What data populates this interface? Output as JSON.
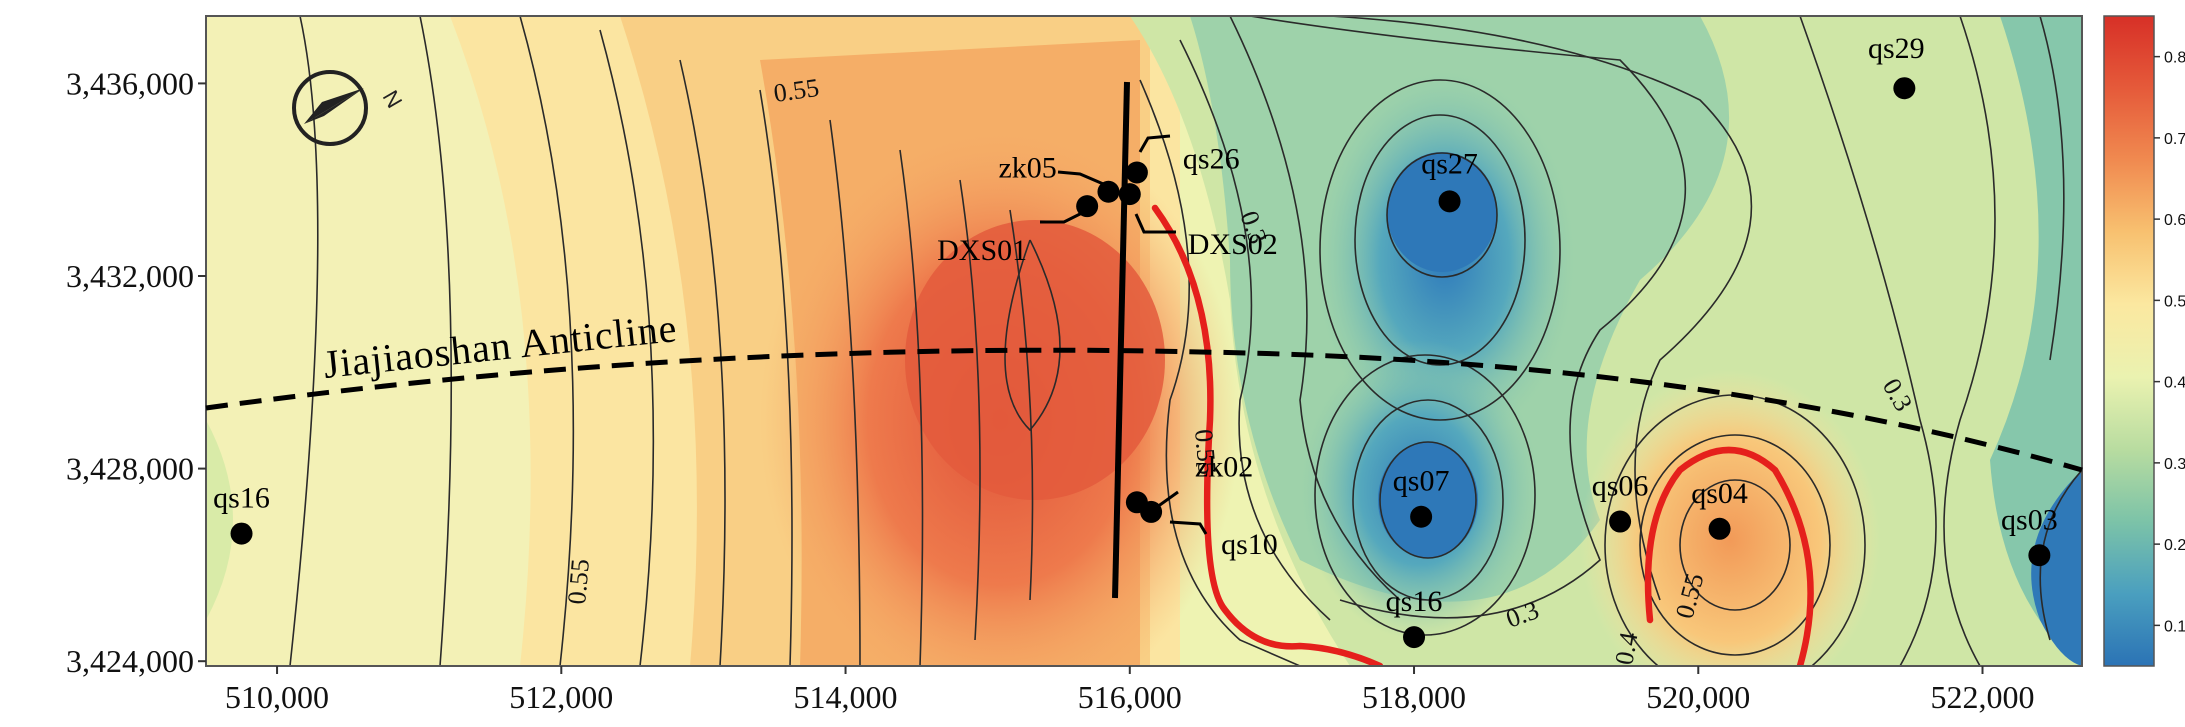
{
  "x_axis": {
    "ticks": [
      {
        "value": 510000,
        "label": "510,000"
      },
      {
        "value": 512000,
        "label": "512,000"
      },
      {
        "value": 514000,
        "label": "514,000"
      },
      {
        "value": 516000,
        "label": "516,000"
      },
      {
        "value": 518000,
        "label": "518,000"
      },
      {
        "value": 520000,
        "label": "520,000"
      },
      {
        "value": 522000,
        "label": "522,000"
      }
    ],
    "range": [
      509500,
      522700
    ]
  },
  "y_axis": {
    "ticks": [
      {
        "value": 3424000,
        "label": "3,424,000"
      },
      {
        "value": 3428000,
        "label": "3,428,000"
      },
      {
        "value": 3432000,
        "label": "3,432,000"
      },
      {
        "value": 3436000,
        "label": "3,436,000"
      }
    ],
    "range": [
      3423900,
      3437400
    ]
  },
  "colorbar": {
    "ticks": [
      {
        "value": 0.8,
        "label": "0.8"
      },
      {
        "value": 0.7,
        "label": "0.7"
      },
      {
        "value": 0.6,
        "label": "0.6"
      },
      {
        "value": 0.5,
        "label": "0.5"
      },
      {
        "value": 0.4,
        "label": "0.4"
      },
      {
        "value": 0.3,
        "label": "0.3"
      },
      {
        "value": 0.2,
        "label": "0.2"
      },
      {
        "value": 0.1,
        "label": "0.1"
      }
    ],
    "range": [
      0.05,
      0.85
    ],
    "colors": [
      "#2b73b5",
      "#4a9fbf",
      "#7cc3a8",
      "#b8dca0",
      "#eaf2b0",
      "#fbe8a0",
      "#f8c170",
      "#f08a50",
      "#e55a3a",
      "#d73027"
    ]
  },
  "points": [
    {
      "name": "qs29",
      "x": 521450,
      "y": 3435900
    },
    {
      "name": "qs26",
      "x": 516050,
      "y": 3434150
    },
    {
      "name": "zk05",
      "x": 515850,
      "y": 3433750
    },
    {
      "name": "DXS01",
      "x": 515700,
      "y": 3433450
    },
    {
      "name": "DXS02",
      "x": 516000,
      "y": 3433700
    },
    {
      "name": "qs27",
      "x": 518250,
      "y": 3433550
    },
    {
      "name": "zk02",
      "x": 516050,
      "y": 3427300
    },
    {
      "name": "qs10",
      "x": 516150,
      "y": 3427100
    },
    {
      "name": "qs07",
      "x": 518050,
      "y": 3427000
    },
    {
      "name": "qs06",
      "x": 519450,
      "y": 3426900
    },
    {
      "name": "qs04",
      "x": 520150,
      "y": 3426750
    },
    {
      "name": "qs03",
      "x": 522400,
      "y": 3426200
    },
    {
      "name": "qs16",
      "x": 509750,
      "y": 3426650
    },
    {
      "name": "qs16",
      "x": 518000,
      "y": 3424500
    }
  ],
  "fold_label": "Jiajiaoshan Anticline",
  "contour_labels": [
    "0.55",
    "0.3",
    "0.55",
    "0.55",
    "0.3",
    "0.55",
    "0.3",
    "0.4"
  ],
  "north_arrow": {
    "label": "N",
    "icon": "north-arrow-icon"
  }
}
